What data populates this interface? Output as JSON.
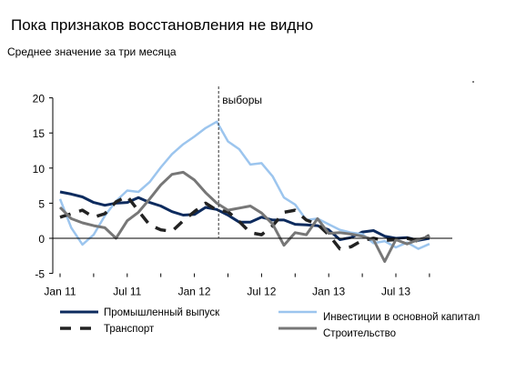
{
  "title": "Пока признаков восстановления не видно",
  "subtitle": "Среднее значение за три месяца",
  "chart_data": {
    "type": "line",
    "x_ticks": [
      "Jan 11",
      "Jul 11",
      "Jan 12",
      "Jul 12",
      "Jan 13",
      "Jul 13"
    ],
    "ylim": [
      -5,
      20
    ],
    "y_ticks": [
      -5,
      0,
      5,
      10,
      15,
      20
    ],
    "annotation": {
      "label": "выборы",
      "x_index": 14
    },
    "x_months": [
      "2011-01",
      "2011-02",
      "2011-03",
      "2011-04",
      "2011-05",
      "2011-06",
      "2011-07",
      "2011-08",
      "2011-09",
      "2011-10",
      "2011-11",
      "2011-12",
      "2012-01",
      "2012-02",
      "2012-03",
      "2012-04",
      "2012-05",
      "2012-06",
      "2012-07",
      "2012-08",
      "2012-09",
      "2012-10",
      "2012-11",
      "2012-12",
      "2013-01",
      "2013-02",
      "2013-03",
      "2013-04",
      "2013-05",
      "2013-06",
      "2013-07",
      "2013-08",
      "2013-09",
      "2013-10"
    ],
    "series": [
      {
        "name": "Промышленный выпуск",
        "color": "#0d2b5e",
        "style": "solid",
        "width": 3,
        "values": [
          6.6,
          6.3,
          5.9,
          5.1,
          4.7,
          5.0,
          5.1,
          5.8,
          5.1,
          4.6,
          3.8,
          3.3,
          3.4,
          4.4,
          4.1,
          3.3,
          2.3,
          2.3,
          3.0,
          2.6,
          2.6,
          2.0,
          1.9,
          1.8,
          1.2,
          -0.2,
          0.1,
          0.9,
          1.1,
          0.3,
          0.0,
          0.1,
          -0.3,
          0.0
        ]
      },
      {
        "name": "Инвестиции в основной капитал",
        "color": "#9cc5ee",
        "style": "solid",
        "width": 2.5,
        "values": [
          5.6,
          1.5,
          -0.9,
          0.5,
          3.2,
          5.3,
          6.8,
          6.6,
          8.0,
          10.1,
          12.0,
          13.4,
          14.5,
          15.7,
          16.6,
          13.8,
          12.7,
          10.5,
          10.7,
          8.8,
          5.8,
          4.8,
          2.6,
          2.8,
          2.0,
          1.2,
          0.8,
          0.6,
          -0.7,
          -0.4,
          -1.3,
          -0.6,
          -1.5,
          -0.8
        ]
      },
      {
        "name": "Транспорт",
        "color": "#222222",
        "style": "dashed",
        "width": 3.5,
        "values": [
          3.0,
          3.5,
          4.0,
          3.0,
          3.5,
          5.2,
          6.0,
          3.9,
          1.9,
          1.2,
          1.0,
          2.5,
          3.8,
          5.0,
          4.0,
          3.8,
          2.4,
          0.8,
          0.5,
          1.8,
          3.7,
          4.0,
          2.6,
          2.0,
          0.5,
          -1.5,
          -1.2,
          -0.3,
          0.0,
          -0.3,
          -0.2,
          0.0,
          -0.4,
          0.4
        ]
      },
      {
        "name": "Строительство",
        "color": "#777777",
        "style": "solid",
        "width": 3,
        "values": [
          4.4,
          2.8,
          2.2,
          1.8,
          1.5,
          0.0,
          2.5,
          3.7,
          5.6,
          7.6,
          9.1,
          9.4,
          8.3,
          6.5,
          5.0,
          4.0,
          4.3,
          4.6,
          3.6,
          2.0,
          -1.0,
          0.8,
          0.5,
          2.8,
          0.7,
          0.8,
          0.6,
          0.3,
          -0.2,
          -3.3,
          -0.2,
          -0.8,
          -0.2,
          0.3
        ]
      }
    ]
  }
}
